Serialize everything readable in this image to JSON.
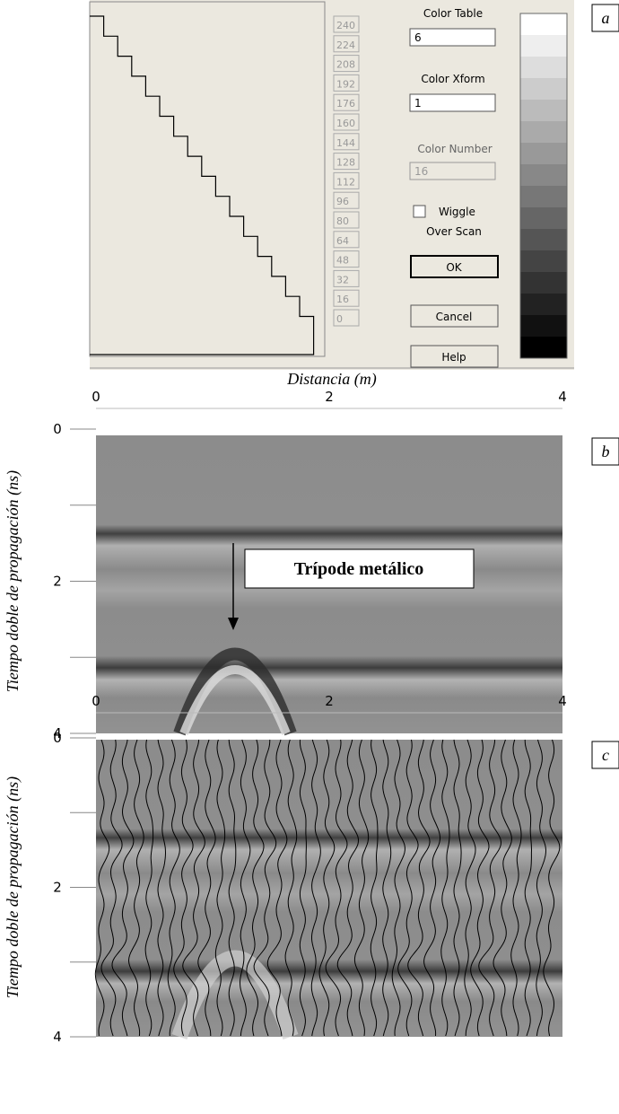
{
  "panel_labels": [
    "a",
    "b",
    "c"
  ],
  "dialog": {
    "levels": [
      240,
      224,
      208,
      192,
      176,
      160,
      144,
      128,
      112,
      96,
      80,
      64,
      48,
      32,
      16,
      0
    ],
    "color_table": {
      "label": "Color Table",
      "value": "6"
    },
    "color_xform": {
      "label": "Color Xform",
      "value": "1"
    },
    "color_number": {
      "label": "Color Number",
      "value": "16"
    },
    "wiggle": "Wiggle",
    "over_scan": "Over Scan",
    "buttons": [
      "OK",
      "Cancel",
      "Help"
    ]
  },
  "x_axis": {
    "label": "Distancia (m)",
    "ticks": [
      0,
      2,
      4
    ]
  },
  "y_axis": {
    "label": "Tiempo doble de propagación (ns)",
    "ticks": [
      0,
      2,
      4
    ]
  },
  "annotation": "Trípode metálico"
}
